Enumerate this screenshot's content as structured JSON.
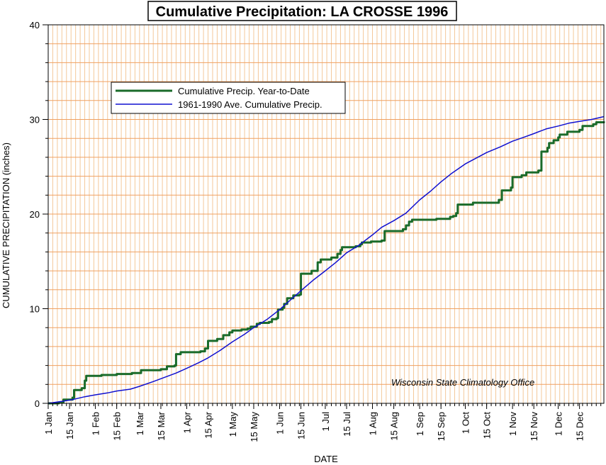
{
  "chart_data": {
    "type": "line",
    "title": "Cumulative Precipitation: LA CROSSE 1996",
    "xlabel": "DATE",
    "ylabel": "CUMULATIVE PRECIPITATION (inches)",
    "ylim": [
      0,
      40
    ],
    "xlim": [
      1,
      366
    ],
    "yticks": [
      0,
      10,
      20,
      30,
      40
    ],
    "xtick_labels": [
      "1 Jan",
      "15 Jan",
      "1 Feb",
      "15 Feb",
      "1 Mar",
      "15 Mar",
      "1 Apr",
      "15 Apr",
      "1 May",
      "15 May",
      "1 Jun",
      "15 Jun",
      "1 Jul",
      "15 Jul",
      "1 Aug",
      "15 Aug",
      "1 Sep",
      "15 Sep",
      "1 Oct",
      "15 Oct",
      "1 Nov",
      "15 Nov",
      "1 Dec",
      "15 Dec"
    ],
    "xtick_days": [
      1,
      15,
      32,
      46,
      61,
      75,
      92,
      106,
      122,
      136,
      153,
      167,
      183,
      197,
      214,
      228,
      245,
      259,
      275,
      289,
      306,
      320,
      336,
      350
    ],
    "grid": true,
    "legend_position": "top-left",
    "annotation": "Wisconsin State Climatology Office",
    "series": [
      {
        "name": "Cumulative Precip. Year-to-Date",
        "color": "#1a6b2a",
        "width": 3,
        "step": true,
        "points": [
          [
            1,
            0
          ],
          [
            8,
            0.1
          ],
          [
            11,
            0.4
          ],
          [
            17,
            0.6
          ],
          [
            18,
            1.4
          ],
          [
            23,
            1.6
          ],
          [
            25,
            2.4
          ],
          [
            26,
            2.9
          ],
          [
            36,
            3.0
          ],
          [
            46,
            3.1
          ],
          [
            56,
            3.2
          ],
          [
            62,
            3.5
          ],
          [
            75,
            3.6
          ],
          [
            79,
            3.9
          ],
          [
            84,
            4.0
          ],
          [
            85,
            5.2
          ],
          [
            88,
            5.4
          ],
          [
            101,
            5.5
          ],
          [
            104,
            5.8
          ],
          [
            106,
            6.6
          ],
          [
            112,
            6.8
          ],
          [
            116,
            7.2
          ],
          [
            120,
            7.5
          ],
          [
            122,
            7.7
          ],
          [
            128,
            7.8
          ],
          [
            132,
            7.9
          ],
          [
            134,
            8.1
          ],
          [
            138,
            8.4
          ],
          [
            140,
            8.5
          ],
          [
            146,
            8.6
          ],
          [
            148,
            8.9
          ],
          [
            151,
            9.0
          ],
          [
            152,
            9.9
          ],
          [
            155,
            10.1
          ],
          [
            156,
            10.5
          ],
          [
            158,
            11.1
          ],
          [
            162,
            11.4
          ],
          [
            166,
            11.5
          ],
          [
            167,
            13.7
          ],
          [
            174,
            14.0
          ],
          [
            178,
            14.9
          ],
          [
            180,
            15.2
          ],
          [
            187,
            15.4
          ],
          [
            191,
            15.8
          ],
          [
            193,
            16.2
          ],
          [
            194,
            16.5
          ],
          [
            203,
            16.6
          ],
          [
            206,
            16.8
          ],
          [
            207,
            17.0
          ],
          [
            213,
            17.1
          ],
          [
            220,
            17.2
          ],
          [
            222,
            18.2
          ],
          [
            234,
            18.4
          ],
          [
            236,
            18.8
          ],
          [
            238,
            19.2
          ],
          [
            240,
            19.4
          ],
          [
            256,
            19.5
          ],
          [
            265,
            19.7
          ],
          [
            267,
            19.8
          ],
          [
            269,
            20.1
          ],
          [
            270,
            21.0
          ],
          [
            280,
            21.2
          ],
          [
            297,
            21.5
          ],
          [
            299,
            22.5
          ],
          [
            305,
            22.8
          ],
          [
            306,
            23.9
          ],
          [
            312,
            24.1
          ],
          [
            315,
            24.4
          ],
          [
            323,
            24.6
          ],
          [
            325,
            26.6
          ],
          [
            329,
            27.0
          ],
          [
            330,
            27.5
          ],
          [
            333,
            27.8
          ],
          [
            336,
            28.1
          ],
          [
            337,
            28.4
          ],
          [
            342,
            28.7
          ],
          [
            350,
            28.9
          ],
          [
            352,
            29.3
          ],
          [
            359,
            29.5
          ],
          [
            361,
            29.7
          ],
          [
            366,
            29.8
          ]
        ]
      },
      {
        "name": "1961-1990 Ave. Cumulative Precip.",
        "color": "#1010d0",
        "width": 1.5,
        "step": false,
        "points": [
          [
            1,
            0
          ],
          [
            10,
            0.2
          ],
          [
            17,
            0.4
          ],
          [
            25,
            0.7
          ],
          [
            32,
            0.9
          ],
          [
            40,
            1.1
          ],
          [
            46,
            1.3
          ],
          [
            55,
            1.5
          ],
          [
            61,
            1.8
          ],
          [
            70,
            2.3
          ],
          [
            75,
            2.6
          ],
          [
            85,
            3.2
          ],
          [
            92,
            3.7
          ],
          [
            100,
            4.3
          ],
          [
            106,
            4.8
          ],
          [
            114,
            5.6
          ],
          [
            122,
            6.5
          ],
          [
            130,
            7.3
          ],
          [
            136,
            8.0
          ],
          [
            145,
            8.9
          ],
          [
            153,
            9.9
          ],
          [
            160,
            10.9
          ],
          [
            167,
            11.9
          ],
          [
            175,
            13.0
          ],
          [
            183,
            14.0
          ],
          [
            190,
            14.9
          ],
          [
            197,
            15.9
          ],
          [
            205,
            16.7
          ],
          [
            214,
            17.8
          ],
          [
            220,
            18.6
          ],
          [
            228,
            19.3
          ],
          [
            236,
            20.1
          ],
          [
            245,
            21.5
          ],
          [
            252,
            22.4
          ],
          [
            259,
            23.4
          ],
          [
            266,
            24.3
          ],
          [
            275,
            25.3
          ],
          [
            282,
            25.9
          ],
          [
            289,
            26.5
          ],
          [
            298,
            27.1
          ],
          [
            306,
            27.7
          ],
          [
            313,
            28.1
          ],
          [
            320,
            28.5
          ],
          [
            328,
            29.0
          ],
          [
            336,
            29.3
          ],
          [
            343,
            29.6
          ],
          [
            350,
            29.8
          ],
          [
            358,
            30.0
          ],
          [
            366,
            30.3
          ]
        ]
      }
    ]
  }
}
